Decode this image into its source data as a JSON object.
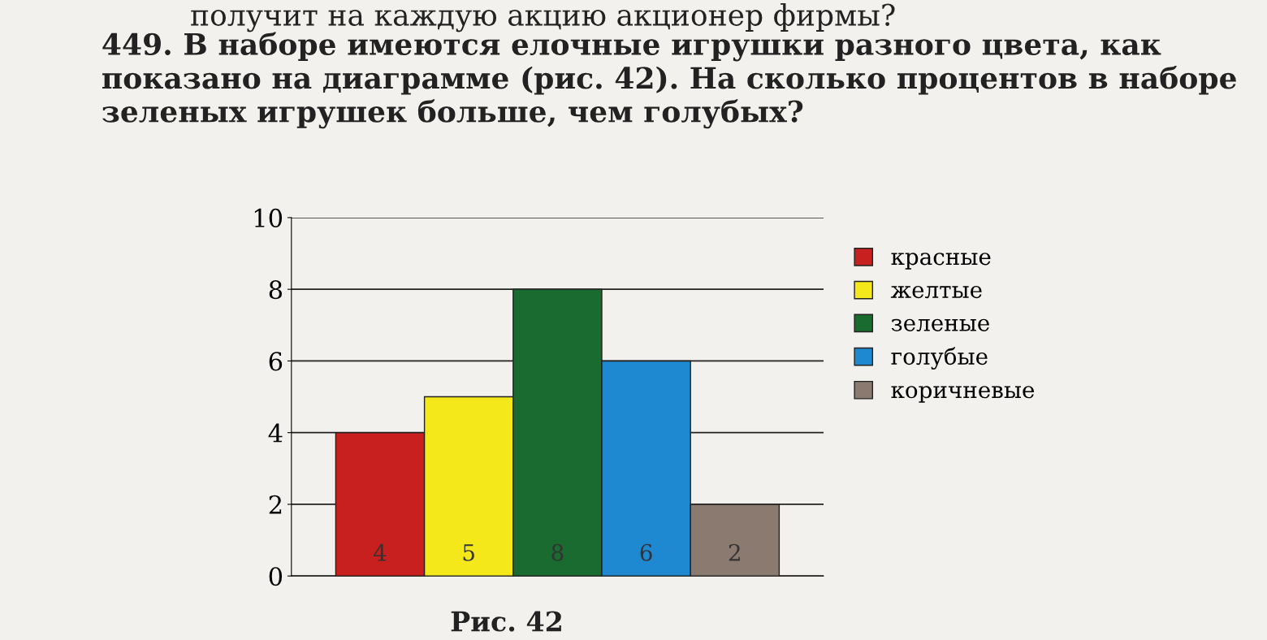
{
  "chart_data": {
    "type": "bar",
    "title": "449. В наборе имеются елочные игрушки разного цвета, как показано на диаграмме (рис. 42). На сколько процентов в наборе зеленых игрушек больше, чем голубых?",
    "annotations": [
      "получит на каждую акцию акционер фирмы?",
      "Рис. 42"
    ],
    "categories": [
      null,
      null,
      null,
      null,
      null
    ],
    "series": [
      {
        "name": "красные",
        "color": "#c8201e",
        "values": [
          4,
          null,
          null,
          null,
          null
        ]
      },
      {
        "name": "желтые",
        "color": "#f5e81a",
        "values": [
          null,
          5,
          null,
          null,
          null
        ]
      },
      {
        "name": "зеленые",
        "color": "#1a6b30",
        "values": [
          null,
          null,
          8,
          null,
          null
        ]
      },
      {
        "name": "голубые",
        "color": "#1e88d0",
        "values": [
          null,
          null,
          null,
          6,
          null
        ]
      },
      {
        "name": "коричневые",
        "color": "#8a7a70",
        "values": [
          null,
          null,
          null,
          null,
          2
        ]
      }
    ],
    "ylim": [
      0,
      10
    ],
    "yticks": [
      0,
      2,
      4,
      6,
      8,
      10
    ],
    "grid": "y",
    "legend": "right",
    "data_labels": true
  }
}
